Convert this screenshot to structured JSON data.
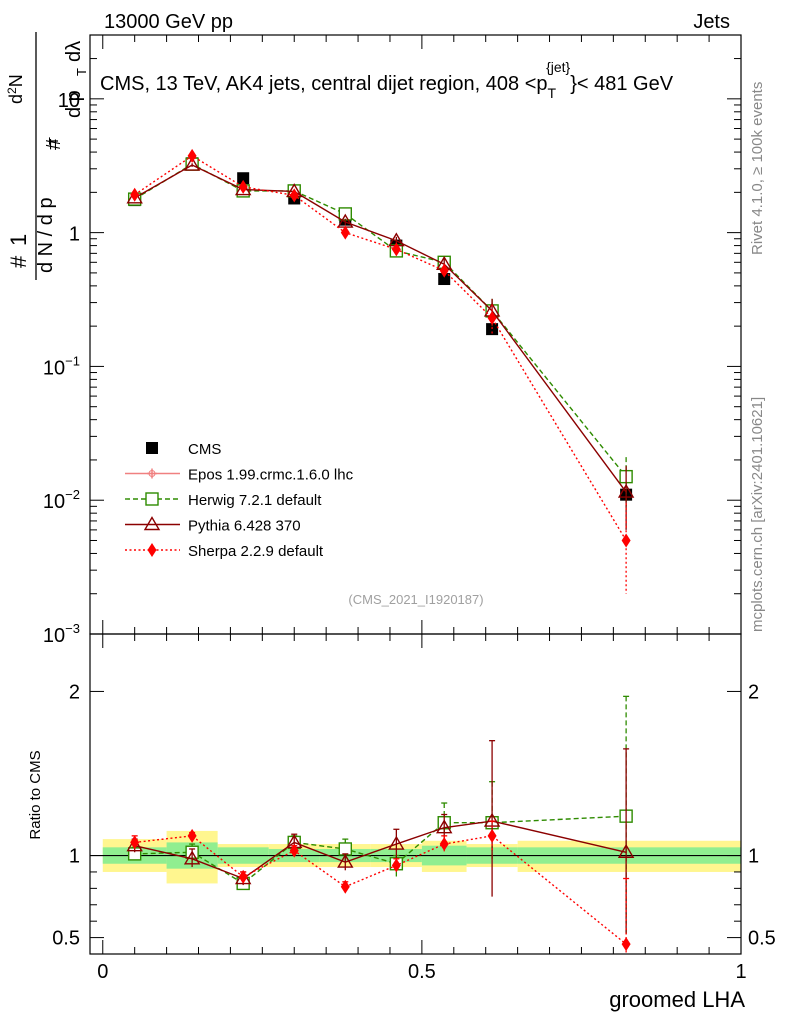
{
  "header": {
    "left": "13000 GeV pp",
    "right": "Jets"
  },
  "side_text": {
    "rivet": "Rivet 4.1.0, ≥ 100k events",
    "mcplots": "mcplots.cern.ch [arXiv:2401.10621]"
  },
  "colors": {
    "cms": "#000000",
    "epos": "#f08080",
    "herwig": "#2e8b00",
    "pythia": "#8b0000",
    "sherpa": "#ff0000",
    "band_inner": "#90ee90",
    "band_outer": "#fff68f"
  },
  "chart_data": [
    {
      "type": "line",
      "title": "CMS, 13 TeV, AK4 jets, central dijet region, 408 <p_T^{jet}< 481 GeV",
      "title_parts": {
        "pre": "CMS, 13 TeV, AK4 jets, central dijet region, 408 <p",
        "sub": "T",
        "sup": "{jet}",
        "post": "}< 481 GeV"
      },
      "ylabel_parts": [
        "1",
        "d N / d p",
        "T",
        "#",
        "d",
        "2",
        "N",
        "d p",
        "T",
        "dλ",
        "#",
        "#"
      ],
      "yscale": "log",
      "ylim": [
        0.001,
        30
      ],
      "xlim": [
        -0.02,
        1.0
      ],
      "y_ticks": [
        {
          "value": 0.001,
          "label": "10",
          "exp": "−3"
        },
        {
          "value": 0.01,
          "label": "10",
          "exp": "−2"
        },
        {
          "value": 0.1,
          "label": "10",
          "exp": "−1"
        },
        {
          "value": 1,
          "label": "1",
          "exp": ""
        },
        {
          "value": 10,
          "label": "10",
          "exp": ""
        }
      ],
      "watermark": "(CMS_2021_I1920187)",
      "x": [
        0.05,
        0.14,
        0.22,
        0.3,
        0.38,
        0.46,
        0.535,
        0.61,
        0.82
      ],
      "bin_edges": [
        0.0,
        0.1,
        0.18,
        0.26,
        0.34,
        0.42,
        0.5,
        0.57,
        0.65,
        1.0
      ],
      "series": [
        {
          "name": "CMS",
          "key": "cms",
          "marker": "square-filled",
          "values": [
            1.75,
            3.3,
            2.55,
            1.8,
            1.25,
            0.8,
            0.45,
            0.19,
            0.011
          ]
        },
        {
          "name": "Epos 1.99.crmc.1.6.0 lhc",
          "key": "epos",
          "marker": "cross",
          "dash": "solid",
          "values": null
        },
        {
          "name": "Herwig 7.2.1 default",
          "key": "herwig",
          "marker": "square-open",
          "dash": "dashed",
          "values": [
            1.78,
            3.25,
            2.05,
            2.05,
            1.38,
            0.73,
            0.6,
            0.26,
            0.015
          ],
          "err_hi": [
            1.82,
            3.35,
            2.12,
            2.12,
            1.45,
            0.78,
            0.66,
            0.32,
            0.021
          ],
          "err_lo": [
            1.74,
            3.15,
            1.98,
            1.98,
            1.31,
            0.68,
            0.54,
            0.2,
            0.009
          ]
        },
        {
          "name": "Pythia 6.428 370",
          "key": "pythia",
          "marker": "triangle-open",
          "dash": "solid",
          "values": [
            1.82,
            3.2,
            2.1,
            2.03,
            1.2,
            0.87,
            0.58,
            0.26,
            0.0115
          ],
          "err_hi": [
            1.86,
            3.3,
            2.17,
            2.1,
            1.27,
            0.93,
            0.64,
            0.32,
            0.018
          ],
          "err_lo": [
            1.78,
            3.1,
            2.03,
            1.96,
            1.13,
            0.81,
            0.52,
            0.2,
            0.006
          ]
        },
        {
          "name": "Sherpa 2.2.9 default",
          "key": "sherpa",
          "marker": "diamond-filled",
          "dash": "dotted",
          "values": [
            1.92,
            3.75,
            2.2,
            1.9,
            1.0,
            0.75,
            0.52,
            0.23,
            0.005
          ],
          "err_hi": [
            1.97,
            3.85,
            2.27,
            1.97,
            1.06,
            0.8,
            0.58,
            0.29,
            0.0095
          ],
          "err_lo": [
            1.87,
            3.65,
            2.13,
            1.83,
            0.94,
            0.7,
            0.46,
            0.17,
            0.002
          ]
        }
      ]
    },
    {
      "type": "line",
      "title": "",
      "ylabel": "Ratio to CMS",
      "xlabel": "groomed LHA",
      "ylim": [
        0.4,
        2.35
      ],
      "xlim": [
        -0.02,
        1.0
      ],
      "y_ticks": [
        {
          "value": 0.5,
          "label": "0.5"
        },
        {
          "value": 1,
          "label": "1"
        },
        {
          "value": 2,
          "label": "2"
        }
      ],
      "x_ticks": [
        {
          "value": 0,
          "label": "0"
        },
        {
          "value": 0.5,
          "label": "0.5"
        },
        {
          "value": 1,
          "label": "1"
        }
      ],
      "band_inner": [
        [
          0.95,
          1.05
        ],
        [
          0.92,
          1.08
        ],
        [
          0.95,
          1.05
        ],
        [
          0.96,
          1.04
        ],
        [
          0.96,
          1.04
        ],
        [
          0.96,
          1.04
        ],
        [
          0.94,
          1.06
        ],
        [
          0.95,
          1.05
        ],
        [
          0.95,
          1.05
        ]
      ],
      "band_outer": [
        [
          0.9,
          1.1
        ],
        [
          0.83,
          1.15
        ],
        [
          0.93,
          1.07
        ],
        [
          0.93,
          1.07
        ],
        [
          0.93,
          1.07
        ],
        [
          0.93,
          1.07
        ],
        [
          0.9,
          1.09
        ],
        [
          0.93,
          1.07
        ],
        [
          0.9,
          1.09
        ]
      ],
      "x": [
        0.05,
        0.14,
        0.22,
        0.3,
        0.38,
        0.46,
        0.535,
        0.61,
        0.82
      ],
      "series": [
        {
          "name": "Herwig 7.2.1 default",
          "key": "herwig",
          "marker": "square-open",
          "dash": "dashed",
          "values": [
            1.01,
            1.02,
            0.83,
            1.08,
            1.04,
            0.95,
            1.2,
            1.2,
            1.24
          ],
          "err_hi": [
            1.05,
            1.07,
            0.87,
            1.12,
            1.1,
            1.0,
            1.32,
            1.45,
            1.97
          ],
          "err_lo": [
            0.97,
            0.97,
            0.78,
            1.04,
            0.99,
            0.86,
            1.1,
            0.98,
            0.52
          ]
        },
        {
          "name": "Pythia 6.428 370",
          "key": "pythia",
          "marker": "triangle-open",
          "dash": "solid",
          "values": [
            1.06,
            0.98,
            0.86,
            1.08,
            0.96,
            1.07,
            1.17,
            1.21,
            1.02
          ],
          "err_hi": [
            1.1,
            1.04,
            0.9,
            1.13,
            1.01,
            1.16,
            1.25,
            1.7,
            1.65
          ],
          "err_lo": [
            1.02,
            0.93,
            0.82,
            1.03,
            0.91,
            0.98,
            1.09,
            0.75,
            0.52
          ]
        },
        {
          "name": "Sherpa 2.2.9 default",
          "key": "sherpa",
          "marker": "diamond-filled",
          "dash": "dotted",
          "values": [
            1.08,
            1.12,
            0.87,
            1.03,
            0.81,
            0.94,
            1.07,
            1.12,
            0.46
          ],
          "err_hi": [
            1.12,
            1.14,
            0.9,
            1.06,
            0.84,
            0.98,
            1.12,
            1.21,
            0.86
          ],
          "err_lo": [
            1.04,
            1.1,
            0.84,
            1.0,
            0.76,
            0.9,
            1.02,
            1.03,
            0.4
          ]
        }
      ]
    }
  ]
}
